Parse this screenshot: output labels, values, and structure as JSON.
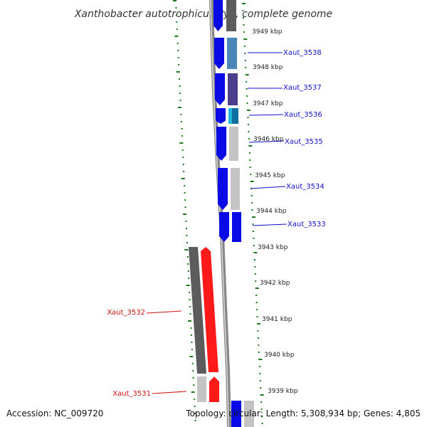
{
  "title": "Xanthobacter autotrophicus Py2, complete genome",
  "footer": {
    "accession": "Accession: NC_009720",
    "topology": "Topology: circular; Length: 5,308,934 bp; Genes: 4,805"
  },
  "colors": {
    "strand_dark": "#4d4d4d",
    "strand_light": "#c0c0c0",
    "tick": "#1a7a1a",
    "forward_gene_label": "#1010cc",
    "reverse_gene_label": "#cc1010",
    "forward_arrow": "#0a0ae6",
    "reverse_arrow": "#e60000",
    "protein_red": "#ff1a1a",
    "protein_gray_dark": "#5c5c5c",
    "protein_gray_light": "#c4c4c4",
    "protein_steel": "#4a86b8",
    "protein_slate": "#4b3f8c",
    "protein_cyan": "#20b8d8"
  },
  "ruler": {
    "unit": "kbp",
    "labels": [
      "3949 kbp",
      "3948 kbp",
      "3947 kbp",
      "3946 kbp",
      "3945 kbp",
      "3944 kbp",
      "3943 kbp",
      "3942 kbp",
      "3941 kbp",
      "3940 kbp",
      "3939 kbp"
    ]
  },
  "genes": [
    {
      "name": "Xaut_3538",
      "strand": "forward",
      "protein_color": "steel"
    },
    {
      "name": "Xaut_3537",
      "strand": "forward",
      "protein_color": "slate"
    },
    {
      "name": "Xaut_3536",
      "strand": "forward",
      "protein_color": "cyan"
    },
    {
      "name": "Xaut_3535",
      "strand": "forward",
      "protein_color": "gray_light"
    },
    {
      "name": "Xaut_3534",
      "strand": "forward",
      "protein_color": "gray_light"
    },
    {
      "name": "Xaut_3533",
      "strand": "forward",
      "protein_color": "blue"
    },
    {
      "name": "Xaut_3532",
      "strand": "reverse",
      "protein_color": "gray_dark"
    },
    {
      "name": "Xaut_3531",
      "strand": "reverse",
      "protein_color": "gray_light"
    }
  ]
}
